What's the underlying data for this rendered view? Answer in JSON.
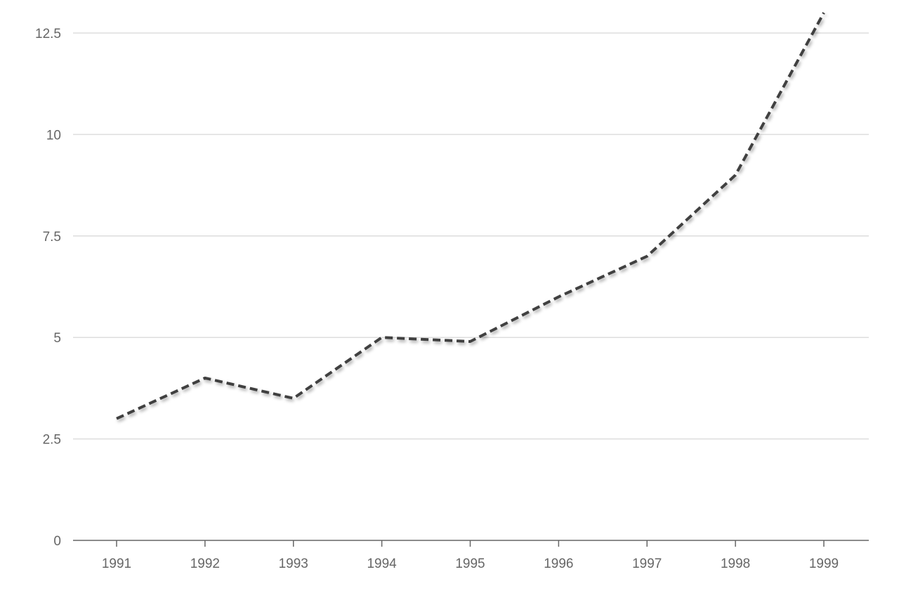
{
  "chart_data": {
    "type": "line",
    "title": "",
    "xlabel": "",
    "ylabel": "",
    "x": [
      "1991",
      "1992",
      "1993",
      "1994",
      "1995",
      "1996",
      "1997",
      "1998",
      "1999"
    ],
    "series": [
      {
        "values": [
          3,
          4,
          3.5,
          5,
          4.9,
          6,
          7,
          9,
          13
        ],
        "color": "#404040",
        "line_style": "dashed"
      }
    ],
    "yticks": [
      0,
      2.5,
      5,
      7.5,
      10,
      12.5
    ],
    "ytick_labels": [
      "0",
      "2.5",
      "5",
      "7.5",
      "10",
      "12.5"
    ],
    "ylim": [
      0,
      12.5
    ],
    "grid": true,
    "legend": false,
    "colors": {
      "grid": "#dddddd",
      "axis": "#666666",
      "text": "#666666"
    }
  }
}
